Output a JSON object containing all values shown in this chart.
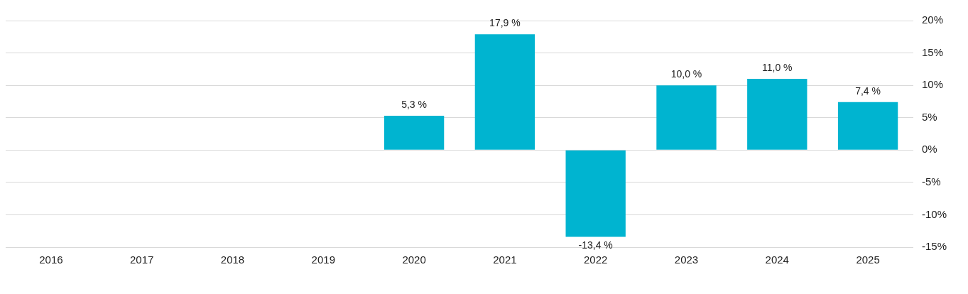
{
  "chart_data": {
    "type": "bar",
    "categories": [
      "2016",
      "2017",
      "2018",
      "2019",
      "2020",
      "2021",
      "2022",
      "2023",
      "2024",
      "2025"
    ],
    "series": [
      {
        "color": "#00b4d0",
        "values": [
          null,
          null,
          null,
          null,
          5.3,
          17.9,
          -13.4,
          10.0,
          11.0,
          7.4
        ],
        "value_labels": [
          null,
          null,
          null,
          null,
          "5,3 %",
          "17,9 %",
          "-13,4 %",
          "10,0 %",
          "11,0 %",
          "7,4 %"
        ]
      }
    ],
    "ylim": [
      -15,
      20
    ],
    "yticks": [
      {
        "value": -15,
        "label": "-15%"
      },
      {
        "value": -10,
        "label": "-10%"
      },
      {
        "value": -5,
        "label": "-5%"
      },
      {
        "value": 0,
        "label": "0%"
      },
      {
        "value": 5,
        "label": "5%"
      },
      {
        "value": 10,
        "label": "10%"
      },
      {
        "value": 15,
        "label": "15%"
      },
      {
        "value": 20,
        "label": "20%"
      }
    ],
    "grid": "y",
    "legend": false
  }
}
